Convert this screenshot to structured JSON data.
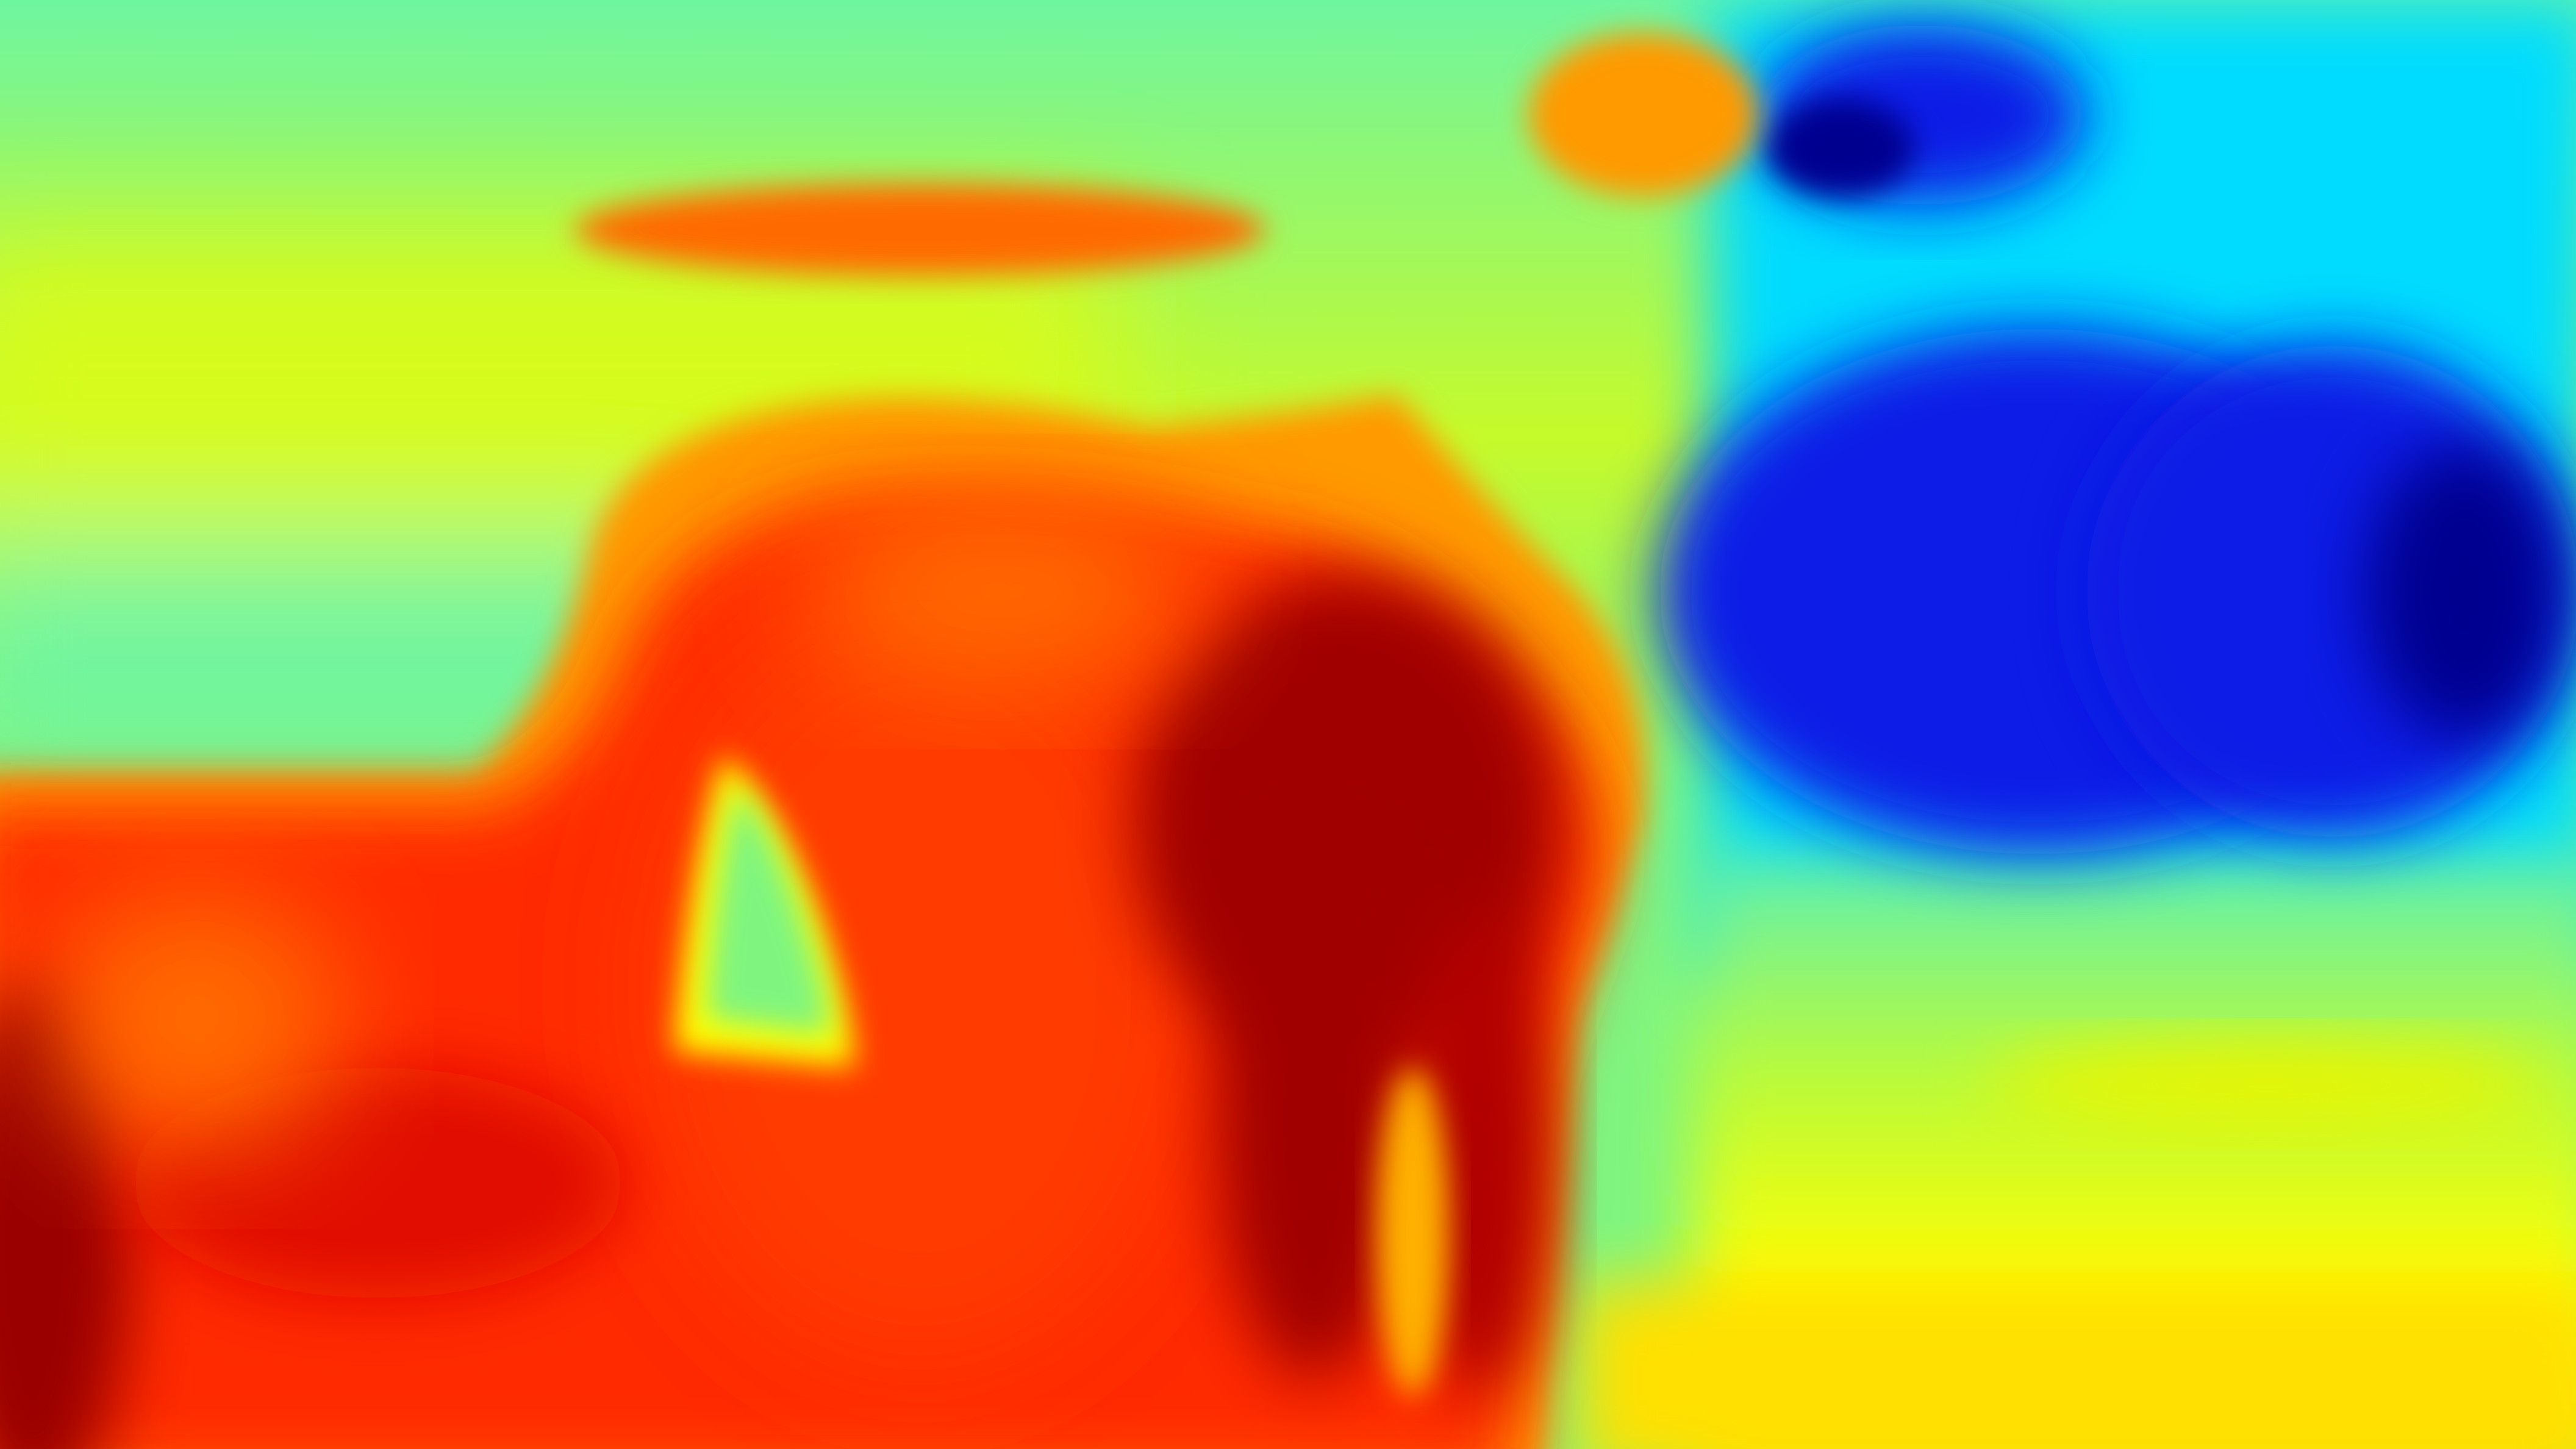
{
  "image": {
    "kind": "depth-heatmap",
    "colormap": "jet",
    "palette": {
      "far_low": "#00008f",
      "blue": "#0a1ee6",
      "cyan": "#00dcff",
      "aqua_green": "#6ff5a0",
      "yellow_green": "#c6fa2a",
      "yellow": "#ffff00",
      "orange": "#ff9a00",
      "red": "#ff2a00",
      "dark_red": "#8a0000"
    }
  }
}
